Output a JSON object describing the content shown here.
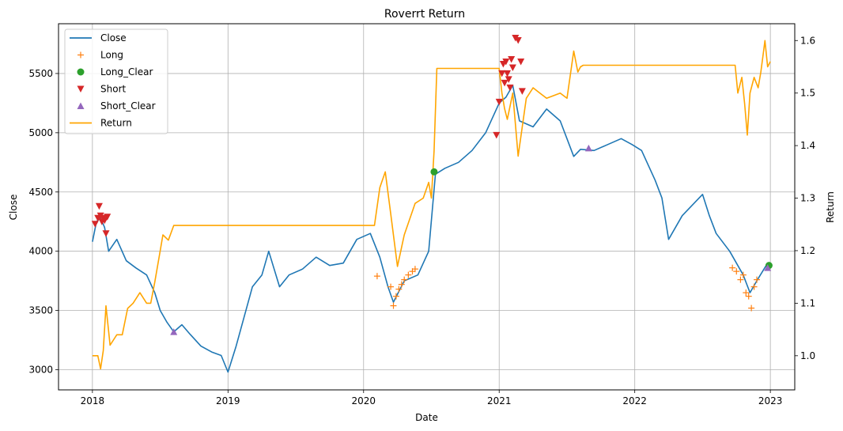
{
  "chart_data": {
    "type": "line",
    "title": "Roverrt Return",
    "xlabel": "Date",
    "ylabel": "Close",
    "y2label": "Return",
    "x_ticks": [
      "2018",
      "2019",
      "2020",
      "2021",
      "2022",
      "2023"
    ],
    "y_ticks": [
      3000,
      3500,
      4000,
      4500,
      5000,
      5500
    ],
    "y2_ticks": [
      1.0,
      1.1,
      1.2,
      1.3,
      1.4,
      1.5,
      1.6
    ],
    "xlim": [
      2017.75,
      2023.18
    ],
    "ylim": [
      2830,
      5920
    ],
    "y2lim": [
      0.935,
      1.632
    ],
    "grid": true,
    "legend_position": "top-left",
    "colors": {
      "close": "#1f77b4",
      "long": "#ff7f0e",
      "long_clear": "#2ca02c",
      "short": "#d62728",
      "short_clear": "#9467bd",
      "return": "#ffa500"
    },
    "legend": [
      {
        "label": "Close",
        "kind": "line",
        "color": "#1f77b4"
      },
      {
        "label": "Long",
        "kind": "plus",
        "color": "#ff7f0e"
      },
      {
        "label": "Long_Clear",
        "kind": "circle",
        "color": "#2ca02c"
      },
      {
        "label": "Short",
        "kind": "tri-down",
        "color": "#d62728"
      },
      {
        "label": "Short_Clear",
        "kind": "tri-up",
        "color": "#9467bd"
      },
      {
        "label": "Return",
        "kind": "line",
        "color": "#ffa500"
      }
    ],
    "series": [
      {
        "name": "Close",
        "axis": "left",
        "x": [
          2018.0,
          2018.03,
          2018.06,
          2018.09,
          2018.12,
          2018.18,
          2018.25,
          2018.32,
          2018.4,
          2018.46,
          2018.5,
          2018.55,
          2018.6,
          2018.66,
          2018.72,
          2018.8,
          2018.88,
          2018.95,
          2019.0,
          2019.06,
          2019.12,
          2019.18,
          2019.25,
          2019.3,
          2019.38,
          2019.45,
          2019.55,
          2019.65,
          2019.75,
          2019.85,
          2019.95,
          2020.05,
          2020.12,
          2020.18,
          2020.22,
          2020.3,
          2020.4,
          2020.48,
          2020.53,
          2020.6,
          2020.7,
          2020.8,
          2020.9,
          2021.0,
          2021.05,
          2021.1,
          2021.15,
          2021.25,
          2021.35,
          2021.45,
          2021.55,
          2021.6,
          2021.7,
          2021.8,
          2021.9,
          2021.98,
          2022.05,
          2022.15,
          2022.2,
          2022.25,
          2022.35,
          2022.5,
          2022.55,
          2022.6,
          2022.7,
          2022.8,
          2022.85,
          2022.9,
          2022.98
        ],
        "values": [
          4080,
          4250,
          4280,
          4200,
          4000,
          4100,
          3920,
          3860,
          3800,
          3650,
          3500,
          3400,
          3320,
          3380,
          3300,
          3200,
          3150,
          3120,
          2980,
          3200,
          3450,
          3700,
          3800,
          4000,
          3700,
          3800,
          3850,
          3950,
          3880,
          3900,
          4100,
          4150,
          3950,
          3700,
          3570,
          3750,
          3800,
          4000,
          4650,
          4700,
          4750,
          4850,
          5000,
          5250,
          5300,
          5400,
          5100,
          5050,
          5200,
          5100,
          4800,
          4860,
          4850,
          4900,
          4950,
          4900,
          4850,
          4600,
          4450,
          4100,
          4300,
          4480,
          4300,
          4150,
          4000,
          3800,
          3650,
          3750,
          3900
        ]
      },
      {
        "name": "Return",
        "axis": "right",
        "x": [
          2018.0,
          2018.04,
          2018.06,
          2018.08,
          2018.1,
          2018.13,
          2018.18,
          2018.22,
          2018.26,
          2018.3,
          2018.35,
          2018.4,
          2018.43,
          2018.46,
          2018.5,
          2018.52,
          2018.56,
          2018.6,
          2019.0,
          2019.5,
          2020.0,
          2020.08,
          2020.12,
          2020.16,
          2020.2,
          2020.25,
          2020.3,
          2020.38,
          2020.44,
          2020.48,
          2020.5,
          2020.52,
          2020.54,
          2021.0,
          2021.02,
          2021.04,
          2021.06,
          2021.1,
          2021.14,
          2021.2,
          2021.25,
          2021.3,
          2021.35,
          2021.45,
          2021.5,
          2021.55,
          2021.58,
          2021.6,
          2021.62,
          2021.65,
          2022.0,
          2022.5,
          2022.74,
          2022.76,
          2022.79,
          2022.81,
          2022.83,
          2022.85,
          2022.88,
          2022.91,
          2022.93,
          2022.95,
          2022.96,
          2022.98,
          2023.0
        ],
        "values": [
          1.0,
          1.0,
          0.975,
          1.01,
          1.095,
          1.02,
          1.04,
          1.04,
          1.09,
          1.1,
          1.12,
          1.1,
          1.1,
          1.14,
          1.2,
          1.23,
          1.22,
          1.248,
          1.248,
          1.248,
          1.248,
          1.248,
          1.32,
          1.35,
          1.27,
          1.17,
          1.23,
          1.29,
          1.3,
          1.33,
          1.3,
          1.39,
          1.547,
          1.547,
          1.5,
          1.47,
          1.45,
          1.5,
          1.38,
          1.49,
          1.51,
          1.5,
          1.49,
          1.5,
          1.49,
          1.58,
          1.54,
          1.55,
          1.553,
          1.553,
          1.553,
          1.553,
          1.553,
          1.5,
          1.53,
          1.48,
          1.42,
          1.5,
          1.53,
          1.51,
          1.54,
          1.58,
          1.6,
          1.55,
          1.56
        ]
      },
      {
        "name": "Long",
        "axis": "left",
        "marker": "plus",
        "x": [
          2020.1,
          2020.2,
          2020.22,
          2020.24,
          2020.26,
          2020.28,
          2020.3,
          2020.33,
          2020.36,
          2020.38,
          2022.72,
          2022.75,
          2022.78,
          2022.8,
          2022.82,
          2022.84,
          2022.86,
          2022.88,
          2022.9
        ],
        "values": [
          3790,
          3700,
          3540,
          3620,
          3680,
          3720,
          3760,
          3800,
          3830,
          3850,
          3860,
          3830,
          3760,
          3800,
          3650,
          3620,
          3520,
          3700,
          3760
        ]
      },
      {
        "name": "Long_Clear",
        "axis": "left",
        "marker": "circle",
        "x": [
          2020.52,
          2022.99
        ],
        "values": [
          4670,
          3880
        ]
      },
      {
        "name": "Short",
        "axis": "left",
        "marker": "tri-down",
        "x": [
          2018.02,
          2018.04,
          2018.05,
          2018.06,
          2018.07,
          2018.08,
          2018.09,
          2018.1,
          2018.11,
          2020.98,
          2021.0,
          2021.02,
          2021.03,
          2021.04,
          2021.05,
          2021.06,
          2021.07,
          2021.08,
          2021.09,
          2021.1,
          2021.12,
          2021.14,
          2021.16,
          2021.17
        ],
        "values": [
          4230,
          4280,
          4380,
          4300,
          4250,
          4280,
          4260,
          4150,
          4290,
          4980,
          5260,
          5500,
          5580,
          5420,
          5600,
          5500,
          5450,
          5380,
          5620,
          5550,
          5800,
          5780,
          5600,
          5350
        ]
      },
      {
        "name": "Short_Clear",
        "axis": "left",
        "marker": "tri-up",
        "x": [
          2018.6,
          2021.66,
          2022.98
        ],
        "values": [
          3320,
          4870,
          3860
        ]
      }
    ]
  }
}
